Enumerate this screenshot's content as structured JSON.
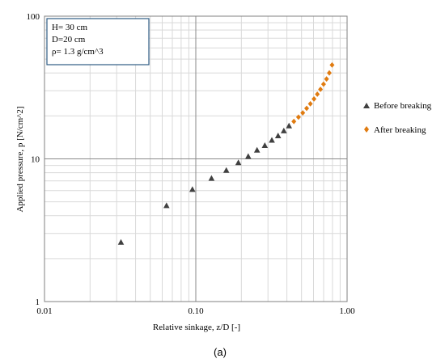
{
  "chart_data": {
    "type": "scatter",
    "x_scale": "log",
    "y_scale": "log",
    "xlim": [
      0.01,
      1.0
    ],
    "ylim": [
      1,
      100
    ],
    "grid": true,
    "xlabel": "Relative sinkage, z/D [-]",
    "ylabel": "Applied pressure, p [N/cm^2]",
    "x_tick_labels": [
      "0.01",
      "0.10",
      "1.00"
    ],
    "y_tick_labels": [
      "1",
      "10",
      "100"
    ],
    "annotation_lines": [
      "H= 30 cm",
      "D=20 cm",
      "ρ= 1.3 g/cm^3"
    ],
    "legend_position": "right",
    "caption": "(a)",
    "series": [
      {
        "name": "Before breaking",
        "marker": "triangle",
        "color": "#404040",
        "x": [
          0.032,
          0.064,
          0.095,
          0.127,
          0.159,
          0.191,
          0.222,
          0.254,
          0.286,
          0.318,
          0.35,
          0.382,
          0.413
        ],
        "y": [
          2.6,
          4.7,
          6.1,
          7.3,
          8.3,
          9.4,
          10.4,
          11.5,
          12.4,
          13.5,
          14.5,
          15.7,
          17.0
        ]
      },
      {
        "name": "After breaking",
        "marker": "diamond",
        "color": "#E07B10",
        "x": [
          0.445,
          0.477,
          0.509,
          0.54,
          0.572,
          0.604,
          0.636,
          0.667,
          0.699,
          0.731,
          0.763,
          0.795
        ],
        "y": [
          18.3,
          19.6,
          21.0,
          22.6,
          24.3,
          26.3,
          28.4,
          30.7,
          33.4,
          36.3,
          40.0,
          45.5
        ]
      }
    ]
  }
}
